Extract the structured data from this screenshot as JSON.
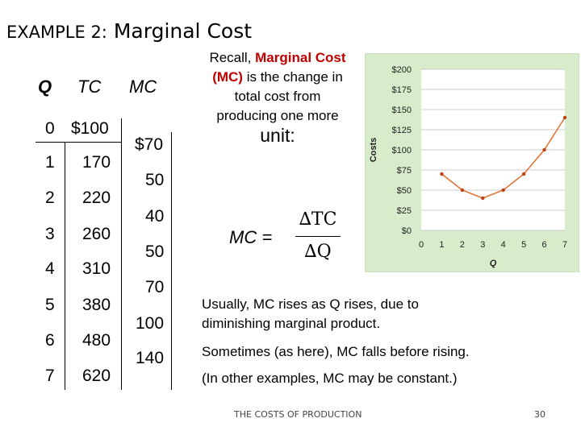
{
  "title": {
    "prefix": "EXAMPLE 2:",
    "main": "Marginal Cost"
  },
  "table": {
    "headers": {
      "q": "Q",
      "tc": "TC",
      "mc": "MC"
    },
    "rows": [
      {
        "q": "0",
        "tc": "$100"
      },
      {
        "q": "1",
        "tc": "170"
      },
      {
        "q": "2",
        "tc": "220"
      },
      {
        "q": "3",
        "tc": "260"
      },
      {
        "q": "4",
        "tc": "310"
      },
      {
        "q": "5",
        "tc": "380"
      },
      {
        "q": "6",
        "tc": "480"
      },
      {
        "q": "7",
        "tc": "620"
      }
    ],
    "mc_values": [
      "$70",
      "50",
      "40",
      "50",
      "70",
      "100",
      "140"
    ]
  },
  "recall": {
    "line1": "Recall,",
    "term": "Marginal Cost (MC)",
    "rest": "is the change in total cost from producing one more",
    "last": "unit:"
  },
  "formula": {
    "lhs": "MC =",
    "numerator": "∆TC",
    "denominator": "∆Q"
  },
  "chart_data": {
    "type": "line",
    "x": [
      1,
      2,
      3,
      4,
      5,
      6,
      7
    ],
    "y": [
      70,
      50,
      40,
      50,
      70,
      100,
      140
    ],
    "xlabel": "Q",
    "ylabel": "Costs",
    "xticks": [
      "0",
      "1",
      "2",
      "3",
      "4",
      "5",
      "6",
      "7"
    ],
    "yticks": [
      "$0",
      "$25",
      "$50",
      "$75",
      "$100",
      "$125",
      "$150",
      "$175",
      "$200"
    ],
    "xlim": [
      0,
      7
    ],
    "ylim": [
      0,
      200
    ],
    "grid": true,
    "colors": {
      "line": "#e07030",
      "marker": "#c04010",
      "bg": "#d8eccc",
      "frame": "#b8d8b0"
    }
  },
  "notes": {
    "note1": "Usually, MC rises as Q rises, due to diminishing marginal product.",
    "note2": "Sometimes (as here), MC falls before rising.",
    "note3": "(In other examples, MC may be constant.)"
  },
  "footer": {
    "text": "THE COSTS OF PRODUCTION",
    "page": "30"
  }
}
